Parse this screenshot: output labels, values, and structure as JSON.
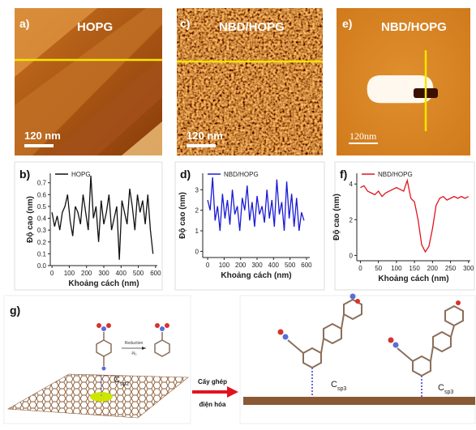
{
  "images": [
    {
      "label": "a)",
      "title": "HOPG",
      "scale_bar": "120 nm"
    },
    {
      "label": "c)",
      "title": "NBD/HOPG",
      "scale_bar": "120 nm"
    },
    {
      "label": "e)",
      "title": "NBD/HOPG",
      "scale_bar": "120nm"
    }
  ],
  "chart_data": [
    {
      "type": "line",
      "label": "b)",
      "y_label": "Độ cao (nm)",
      "x_label": "Khoảng cách (nm)",
      "x": [
        0,
        15,
        30,
        45,
        60,
        75,
        90,
        105,
        120,
        135,
        150,
        165,
        180,
        195,
        210,
        225,
        240,
        255,
        270,
        285,
        300,
        315,
        330,
        345,
        360,
        375,
        390,
        405,
        420,
        435,
        450,
        465,
        480,
        495,
        510,
        525,
        540,
        555,
        570,
        585
      ],
      "series": [
        {
          "name": "HOPG",
          "color": "#111111",
          "values": [
            0.45,
            0.33,
            0.42,
            0.3,
            0.45,
            0.5,
            0.6,
            0.38,
            0.25,
            0.5,
            0.45,
            0.35,
            0.6,
            0.45,
            0.3,
            0.76,
            0.4,
            0.5,
            0.2,
            0.55,
            0.35,
            0.45,
            0.6,
            0.3,
            0.4,
            0.5,
            0.05,
            0.55,
            0.45,
            0.35,
            0.65,
            0.5,
            0.3,
            0.6,
            0.45,
            0.55,
            0.35,
            0.6,
            0.3,
            0.1
          ]
        }
      ],
      "xlim": [
        -10,
        610
      ],
      "ylim": [
        0,
        0.78
      ],
      "xticks": [
        0,
        100,
        200,
        300,
        400,
        500,
        600
      ],
      "yticks": [
        {
          "value": 0,
          "label": "0.0"
        },
        0.1,
        0.2,
        0.3,
        0.4,
        0.5,
        0.6,
        0.7
      ]
    },
    {
      "type": "line",
      "label": "d)",
      "y_label": "Độ cao (nm)",
      "x_label": "Khoảng cách (nm)",
      "x": [
        0,
        15,
        30,
        45,
        60,
        75,
        90,
        105,
        120,
        135,
        150,
        165,
        180,
        195,
        210,
        225,
        240,
        255,
        270,
        285,
        300,
        315,
        330,
        345,
        360,
        375,
        390,
        405,
        420,
        435,
        450,
        465,
        480,
        495,
        510,
        525,
        540,
        555,
        570,
        585
      ],
      "series": [
        {
          "name": "NBD/HOPG",
          "color": "#1a1ad6",
          "values": [
            2.5,
            2.0,
            3.6,
            1.5,
            2.2,
            1.0,
            2.8,
            1.6,
            2.5,
            1.3,
            3.0,
            1.8,
            2.2,
            1.0,
            2.6,
            2.0,
            3.2,
            1.5,
            2.4,
            1.2,
            2.7,
            1.8,
            2.2,
            1.4,
            3.0,
            1.6,
            2.5,
            1.2,
            3.5,
            1.8,
            2.4,
            1.0,
            3.4,
            1.6,
            2.8,
            1.2,
            2.6,
            1.0,
            1.9,
            1.5
          ]
        }
      ],
      "xlim": [
        -30,
        620
      ],
      "ylim": [
        -0.3,
        3.8
      ],
      "xticks": [
        0,
        100,
        200,
        300,
        400,
        500,
        600
      ],
      "yticks": [
        0,
        1,
        2,
        3
      ]
    },
    {
      "type": "line",
      "label": "f)",
      "y_label": "Độ cao (nm)",
      "x_label": "Khoảng cách (nm)",
      "x": [
        0,
        10,
        20,
        30,
        40,
        50,
        60,
        70,
        80,
        90,
        100,
        110,
        120,
        130,
        140,
        150,
        160,
        170,
        180,
        190,
        200,
        210,
        220,
        230,
        240,
        250,
        260,
        270,
        280,
        290,
        300
      ],
      "series": [
        {
          "name": "NBD/HOPG",
          "color": "#e0141e",
          "values": [
            3.8,
            3.9,
            3.6,
            3.5,
            3.4,
            3.6,
            3.3,
            3.5,
            3.6,
            3.7,
            3.8,
            3.7,
            3.6,
            4.2,
            3.2,
            3.0,
            2.0,
            0.6,
            0.2,
            0.5,
            1.5,
            2.8,
            3.2,
            3.3,
            3.1,
            3.2,
            3.3,
            3.2,
            3.3,
            3.2,
            3.3
          ]
        }
      ],
      "xlim": [
        -10,
        305
      ],
      "ylim": [
        -0.3,
        4.6
      ],
      "xticks": [
        0,
        50,
        100,
        150,
        200,
        250,
        300
      ],
      "yticks": [
        0,
        2,
        4
      ]
    }
  ],
  "scheme": {
    "label": "g)",
    "reaction": "Reduction",
    "loss": "-N₂",
    "left_carbon": {
      "letter": "C",
      "subscript": "sp2"
    },
    "arrow_top": "Cấy ghép",
    "arrow_bottom": "điện hóa",
    "right_carbons": [
      {
        "letter": "C",
        "subscript": "sp3"
      },
      {
        "letter": "C",
        "subscript": "sp3"
      }
    ]
  }
}
